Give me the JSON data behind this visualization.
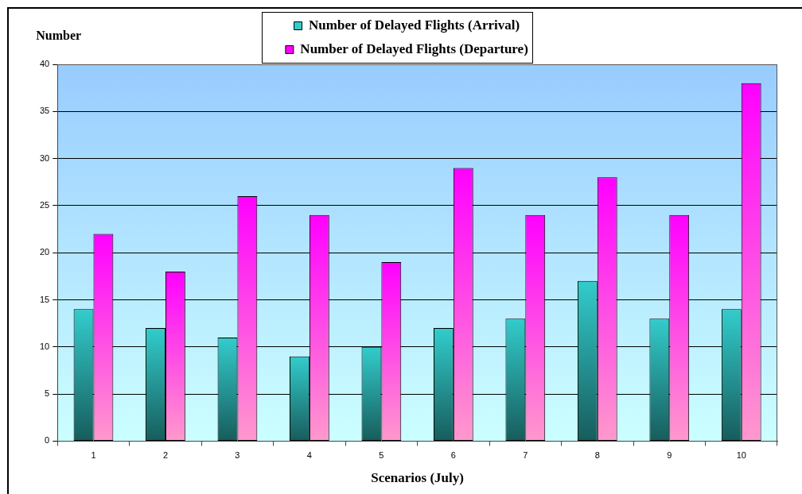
{
  "chart_data": {
    "type": "bar",
    "categories": [
      "1",
      "2",
      "3",
      "4",
      "5",
      "6",
      "7",
      "8",
      "9",
      "10"
    ],
    "series": [
      {
        "name": "Number of Delayed Flights (Arrival)",
        "color": "#33cccc",
        "values": [
          14,
          12,
          11,
          9,
          10,
          12,
          13,
          17,
          13,
          14
        ]
      },
      {
        "name": "Number of Delayed Flights (Departure)",
        "color": "#ff00ff",
        "values": [
          22,
          18,
          26,
          24,
          19,
          29,
          24,
          28,
          24,
          38
        ]
      }
    ],
    "xlabel": "Scenarios (July)",
    "ylabel": "Number",
    "ylim": [
      0,
      40
    ],
    "yticks": [
      0,
      5,
      10,
      15,
      20,
      25,
      30,
      35,
      40
    ],
    "grid": "y",
    "legend": "top"
  }
}
